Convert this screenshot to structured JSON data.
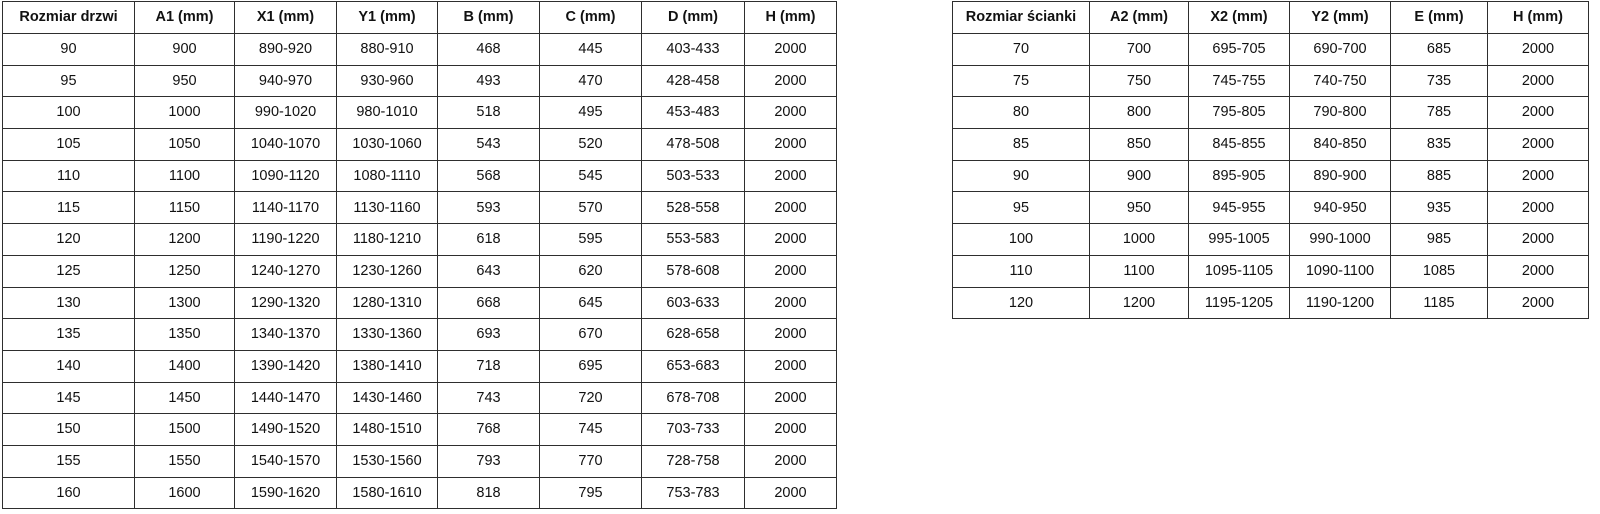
{
  "page": {
    "background_color": "#ffffff",
    "text_color": "#111111",
    "border_color": "#2e2e2e"
  },
  "tables": [
    {
      "id": "door-table",
      "headers": [
        "Rozmiar drzwi",
        "A1 (mm)",
        "X1 (mm)",
        "Y1 (mm)",
        "B (mm)",
        "C (mm)",
        "D (mm)",
        "H (mm)"
      ],
      "rows": [
        [
          "90",
          "900",
          "890-920",
          "880-910",
          "468",
          "445",
          "403-433",
          "2000"
        ],
        [
          "95",
          "950",
          "940-970",
          "930-960",
          "493",
          "470",
          "428-458",
          "2000"
        ],
        [
          "100",
          "1000",
          "990-1020",
          "980-1010",
          "518",
          "495",
          "453-483",
          "2000"
        ],
        [
          "105",
          "1050",
          "1040-1070",
          "1030-1060",
          "543",
          "520",
          "478-508",
          "2000"
        ],
        [
          "110",
          "1100",
          "1090-1120",
          "1080-1110",
          "568",
          "545",
          "503-533",
          "2000"
        ],
        [
          "115",
          "1150",
          "1140-1170",
          "1130-1160",
          "593",
          "570",
          "528-558",
          "2000"
        ],
        [
          "120",
          "1200",
          "1190-1220",
          "1180-1210",
          "618",
          "595",
          "553-583",
          "2000"
        ],
        [
          "125",
          "1250",
          "1240-1270",
          "1230-1260",
          "643",
          "620",
          "578-608",
          "2000"
        ],
        [
          "130",
          "1300",
          "1290-1320",
          "1280-1310",
          "668",
          "645",
          "603-633",
          "2000"
        ],
        [
          "135",
          "1350",
          "1340-1370",
          "1330-1360",
          "693",
          "670",
          "628-658",
          "2000"
        ],
        [
          "140",
          "1400",
          "1390-1420",
          "1380-1410",
          "718",
          "695",
          "653-683",
          "2000"
        ],
        [
          "145",
          "1450",
          "1440-1470",
          "1430-1460",
          "743",
          "720",
          "678-708",
          "2000"
        ],
        [
          "150",
          "1500",
          "1490-1520",
          "1480-1510",
          "768",
          "745",
          "703-733",
          "2000"
        ],
        [
          "155",
          "1550",
          "1540-1570",
          "1530-1560",
          "793",
          "770",
          "728-758",
          "2000"
        ],
        [
          "160",
          "1600",
          "1590-1620",
          "1580-1610",
          "818",
          "795",
          "753-783",
          "2000"
        ]
      ]
    },
    {
      "id": "wall-table",
      "headers": [
        "Rozmiar ścianki",
        "A2 (mm)",
        "X2 (mm)",
        "Y2 (mm)",
        "E (mm)",
        "H (mm)"
      ],
      "rows": [
        [
          "70",
          "700",
          "695-705",
          "690-700",
          "685",
          "2000"
        ],
        [
          "75",
          "750",
          "745-755",
          "740-750",
          "735",
          "2000"
        ],
        [
          "80",
          "800",
          "795-805",
          "790-800",
          "785",
          "2000"
        ],
        [
          "85",
          "850",
          "845-855",
          "840-850",
          "835",
          "2000"
        ],
        [
          "90",
          "900",
          "895-905",
          "890-900",
          "885",
          "2000"
        ],
        [
          "95",
          "950",
          "945-955",
          "940-950",
          "935",
          "2000"
        ],
        [
          "100",
          "1000",
          "995-1005",
          "990-1000",
          "985",
          "2000"
        ],
        [
          "110",
          "1100",
          "1095-1105",
          "1090-1100",
          "1085",
          "2000"
        ],
        [
          "120",
          "1200",
          "1195-1205",
          "1190-1200",
          "1185",
          "2000"
        ]
      ]
    }
  ]
}
